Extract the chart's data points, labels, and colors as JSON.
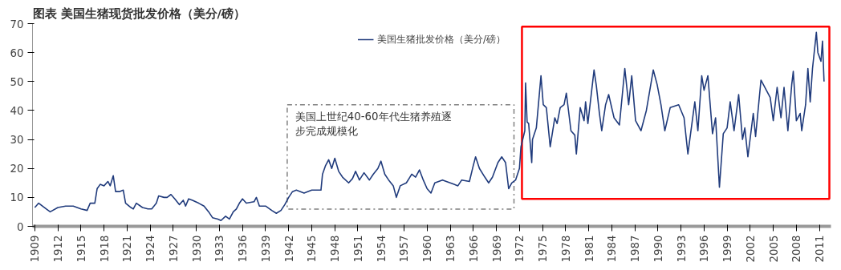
{
  "chart_data": {
    "type": "line",
    "title": "图表  美国生猪现货批发价格（美分/磅）",
    "x": [
      1909,
      1909.5,
      1910.5,
      1911,
      1912,
      1913,
      1914,
      1915,
      1915.8,
      1916.2,
      1916.8,
      1917.1,
      1917.5,
      1918,
      1918.5,
      1918.8,
      1919.2,
      1919.5,
      1920,
      1920.5,
      1920.8,
      1921.5,
      1921.8,
      1922.2,
      1923,
      1923.7,
      1924.2,
      1924.8,
      1925.1,
      1925.8,
      1926.2,
      1926.7,
      1927.2,
      1927.8,
      1928.3,
      1928.6,
      1929,
      1929.5,
      1930.3,
      1931,
      1931.6,
      1932.1,
      1932.8,
      1933.2,
      1933.8,
      1934.3,
      1934.8,
      1935.2,
      1935.6,
      1936,
      1936.5,
      1937.5,
      1937.8,
      1938.2,
      1939,
      1939.8,
      1940.4,
      1941,
      1941.5,
      1942,
      1942.5,
      1943,
      1944,
      1945,
      1946.2,
      1946.4,
      1946.8,
      1947.2,
      1947.6,
      1948,
      1948.5,
      1949,
      1949.8,
      1950.3,
      1950.7,
      1951.2,
      1951.8,
      1952.5,
      1953,
      1953.6,
      1954,
      1954.5,
      1955,
      1955.6,
      1956,
      1956.5,
      1957.3,
      1958,
      1958.5,
      1959,
      1959.5,
      1960,
      1960.5,
      1961,
      1962,
      1963,
      1963.5,
      1964,
      1964.5,
      1965.5,
      1966,
      1966.3,
      1966.8,
      1967.5,
      1968,
      1968.5,
      1969.2,
      1969.7,
      1970.2,
      1970.6,
      1971,
      1971.5,
      1972,
      1972.2,
      1972.7,
      1972.8,
      1973,
      1973.2,
      1973.6,
      1973.7,
      1974.2,
      1974.8,
      1975.1,
      1975.5,
      1976,
      1976.6,
      1976.9,
      1977.3,
      1977.8,
      1978.1,
      1978.7,
      1979.2,
      1979.4,
      1979.9,
      1980.4,
      1980.6,
      1980.9,
      1981.7,
      1982,
      1982.4,
      1982.7,
      1983.2,
      1983.6,
      1984.3,
      1985,
      1985.7,
      1986.2,
      1986.6,
      1987.1,
      1987.8,
      1988.5,
      1989.4,
      1989.9,
      1990.4,
      1990.9,
      1991.6,
      1992.7,
      1993.4,
      1993.9,
      1994.8,
      1995.2,
      1995.7,
      1996,
      1996.5,
      1997.1,
      1997.5,
      1998,
      1998.5,
      1999,
      1999.4,
      1999.9,
      2000.5,
      2001,
      2001.3,
      2001.7,
      2002.4,
      2002.7,
      2003.4,
      2004.1,
      2004.6,
      2005,
      2005.5,
      2006,
      2006.4,
      2006.9,
      2007.4,
      2007.6,
      2008,
      2008.5,
      2008.7,
      2009.2,
      2009.5,
      2009.8,
      2010.1,
      2010.6,
      2010.8,
      2011.2,
      2011.4,
      2011.6
    ],
    "series": [
      {
        "name": "美国生猪批发价格（美分/磅）",
        "color": "#203b7c",
        "values": [
          6.5,
          8,
          6,
          5,
          6.5,
          7,
          7,
          6,
          5.5,
          8,
          8,
          13,
          14.5,
          14,
          15.5,
          14,
          17.5,
          12,
          12,
          12.5,
          8,
          6.5,
          6,
          8,
          6.5,
          6,
          6,
          8,
          10.5,
          10,
          10,
          11,
          9.5,
          7.5,
          9,
          7,
          9.5,
          9,
          8,
          7,
          5,
          3,
          2.5,
          2,
          3.5,
          2.5,
          5,
          6,
          8,
          9.5,
          8,
          8.5,
          10,
          7,
          7,
          5.5,
          4.5,
          5.5,
          7.5,
          10,
          12,
          12.5,
          11.5,
          12.5,
          12.5,
          18,
          21,
          23,
          20,
          23.5,
          19,
          17,
          15,
          16.5,
          19,
          16,
          18.5,
          16,
          18,
          20,
          22.5,
          18,
          16,
          14,
          10,
          14,
          15,
          18,
          17,
          19.5,
          16,
          13,
          11.5,
          15,
          16,
          15,
          14.5,
          14,
          16,
          15.5,
          21,
          24,
          20,
          17,
          15,
          17,
          22,
          24,
          22,
          13,
          15,
          16,
          20,
          27.5,
          33,
          49.5,
          36,
          35.5,
          22,
          30,
          34,
          52,
          42,
          41,
          27.5,
          37.5,
          35.5,
          41,
          42,
          46,
          33,
          31.5,
          25,
          41,
          36.5,
          43,
          35.5,
          54,
          48.5,
          39,
          33,
          42,
          45.5,
          37.5,
          35,
          54.5,
          42,
          52,
          36.5,
          33,
          40,
          54,
          49,
          42,
          33,
          41,
          42,
          37.5,
          25,
          43,
          33,
          52,
          47,
          52,
          32,
          37.5,
          13.5,
          32,
          34,
          43,
          33,
          45.5,
          30,
          34,
          24,
          39,
          31,
          50.5,
          47,
          44.5,
          36.5,
          48,
          37.5,
          48,
          33,
          49,
          53.5,
          36.5,
          39,
          33,
          42,
          54.5,
          43,
          54.5,
          67,
          60,
          57,
          64,
          50
        ]
      }
    ],
    "xlim": [
      1908.7,
      2012.5
    ],
    "ylim": [
      0,
      70
    ],
    "xticks": [
      1909,
      1912,
      1915,
      1918,
      1921,
      1924,
      1927,
      1930,
      1933,
      1936,
      1939,
      1942,
      1945,
      1948,
      1951,
      1954,
      1957,
      1960,
      1963,
      1966,
      1969,
      1972,
      1975,
      1978,
      1981,
      1984,
      1987,
      1990,
      1993,
      1996,
      1999,
      2002,
      2005,
      2008,
      2011
    ],
    "yticks": [
      0,
      10,
      20,
      30,
      40,
      50,
      60,
      70
    ],
    "annotations": [
      "美国上世纪40-60年代生猪养殖逐步完成规模化"
    ],
    "legend": "top",
    "grid": false,
    "marker": "none",
    "line_style": "solid"
  }
}
